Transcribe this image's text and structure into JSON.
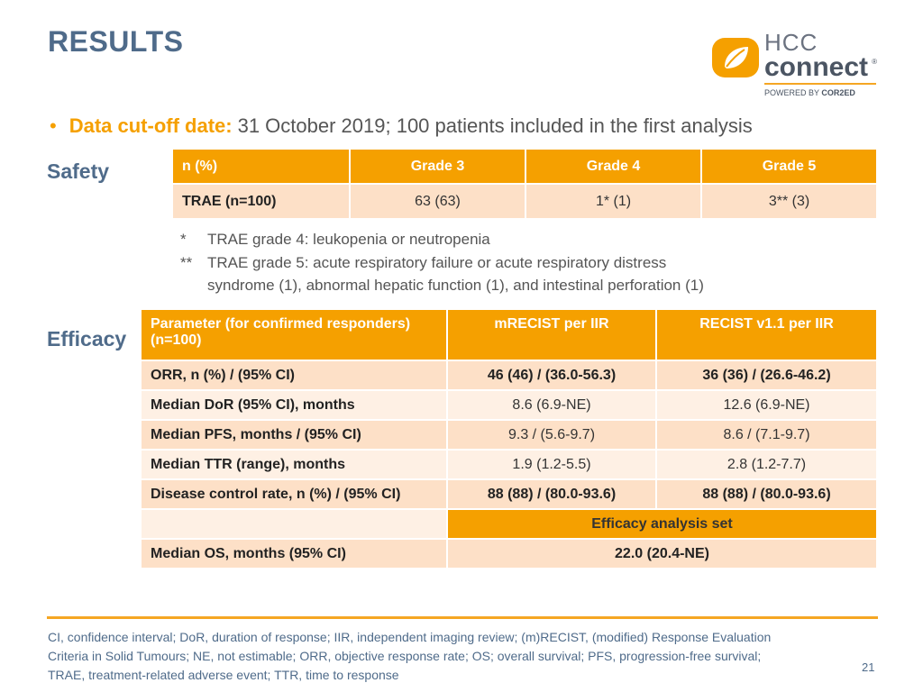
{
  "title": "RESULTS",
  "logo": {
    "hcc": "HCC",
    "connect": "connect",
    "reg": "®",
    "powered": "POWERED BY",
    "brand": "COR2ED"
  },
  "bullet": {
    "label": "Data cut-off date:",
    "text": "31 October 2019; 100 patients included in the first analysis"
  },
  "safety": {
    "label": "Safety",
    "headers": [
      "n (%)",
      "Grade 3",
      "Grade 4",
      "Grade 5"
    ],
    "row": [
      "TRAE (n=100)",
      "63 (63)",
      "1* (1)",
      "3** (3)"
    ],
    "footnotes": [
      {
        "mark": "*",
        "text": "TRAE grade 4: leukopenia or neutropenia"
      },
      {
        "mark": "**",
        "text": "TRAE grade 5: acute respiratory failure or acute respiratory distress"
      },
      {
        "mark": "",
        "text": "syndrome (1), abnormal hepatic function (1), and intestinal perforation (1)"
      }
    ]
  },
  "efficacy": {
    "label": "Efficacy",
    "headers": [
      "Parameter (for confirmed responders)",
      "(n=100)",
      "mRECIST per IIR",
      "RECIST v1.1 per IIR"
    ],
    "rows": [
      [
        "ORR, n (%) / (95% CI)",
        "46 (46) / (36.0-56.3)",
        "36 (36) / (26.6-46.2)"
      ],
      [
        "Median DoR (95% CI), months",
        "8.6 (6.9-NE)",
        "12.6 (6.9-NE)"
      ],
      [
        "Median PFS, months / (95% CI)",
        "9.3 / (5.6-9.7)",
        "8.6 / (7.1-9.7)"
      ],
      [
        "Median TTR (range), months",
        "1.9 (1.2-5.5)",
        "2.8 (1.2-7.7)"
      ],
      [
        "Disease control rate, n (%) / (95% CI)",
        "88 (88) / (80.0-93.6)",
        "88 (88) / (80.0-93.6)"
      ]
    ],
    "analysis_set": "Efficacy analysis set",
    "os_label": "Median OS, months (95% CI)",
    "os_value": "22.0 (20.4-NE)"
  },
  "footer": {
    "lines": [
      "CI, confidence interval; DoR, duration of response; IIR, independent imaging review; (m)RECIST, (modified) Response Evaluation",
      "Criteria in Solid Tumours; NE, not estimable; ORR, objective response rate; OS; overall survival; PFS, progression-free survival;",
      "TRAE, treatment-related adverse event; TTR, time to response"
    ],
    "page_number": "21"
  }
}
